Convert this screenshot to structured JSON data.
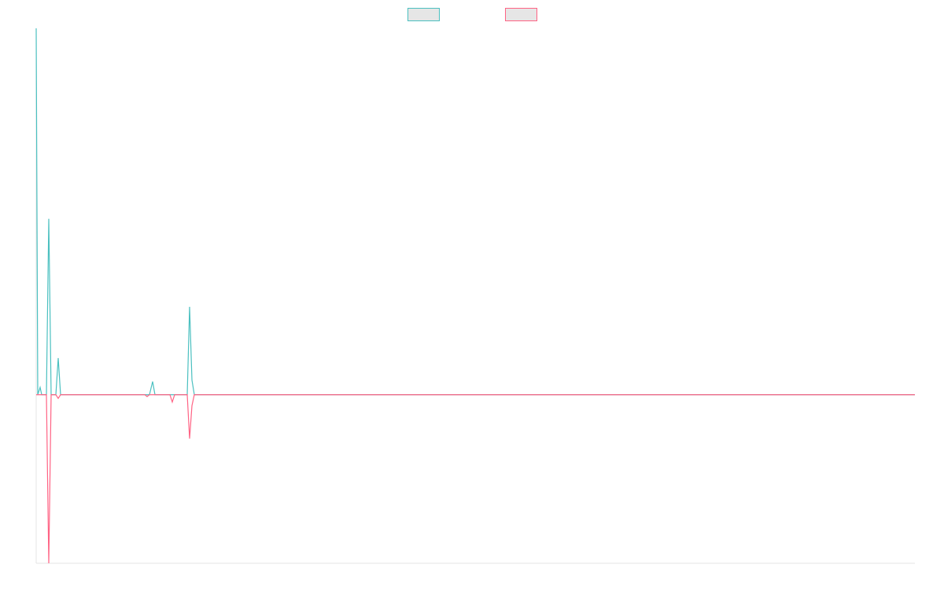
{
  "chart_data": {
    "type": "line",
    "x": [
      0,
      2,
      5,
      7,
      13,
      16,
      19,
      22,
      25,
      28,
      31,
      134,
      138,
      141,
      144,
      148,
      151,
      154,
      170,
      173,
      176,
      192,
      195,
      198,
      201,
      1117
    ],
    "series": [
      {
        "color": "#4bc0c0",
        "values": [
          100,
          0,
          2,
          0,
          0,
          48,
          0,
          0,
          0,
          10,
          0,
          0,
          0,
          0,
          0,
          3.6,
          0,
          0,
          0,
          0,
          0,
          0,
          24,
          4,
          0,
          0
        ]
      },
      {
        "color": "#ff6384",
        "values": [
          0,
          0,
          0,
          0,
          0,
          -46,
          0,
          0,
          0,
          -1,
          0,
          0,
          0,
          -0.5,
          0,
          0,
          0,
          0,
          0,
          -2,
          0,
          0,
          -12,
          -3,
          0,
          0
        ]
      }
    ],
    "xlim": [
      0,
      1117
    ],
    "ylim": [
      -46,
      100
    ],
    "legend": "top"
  }
}
